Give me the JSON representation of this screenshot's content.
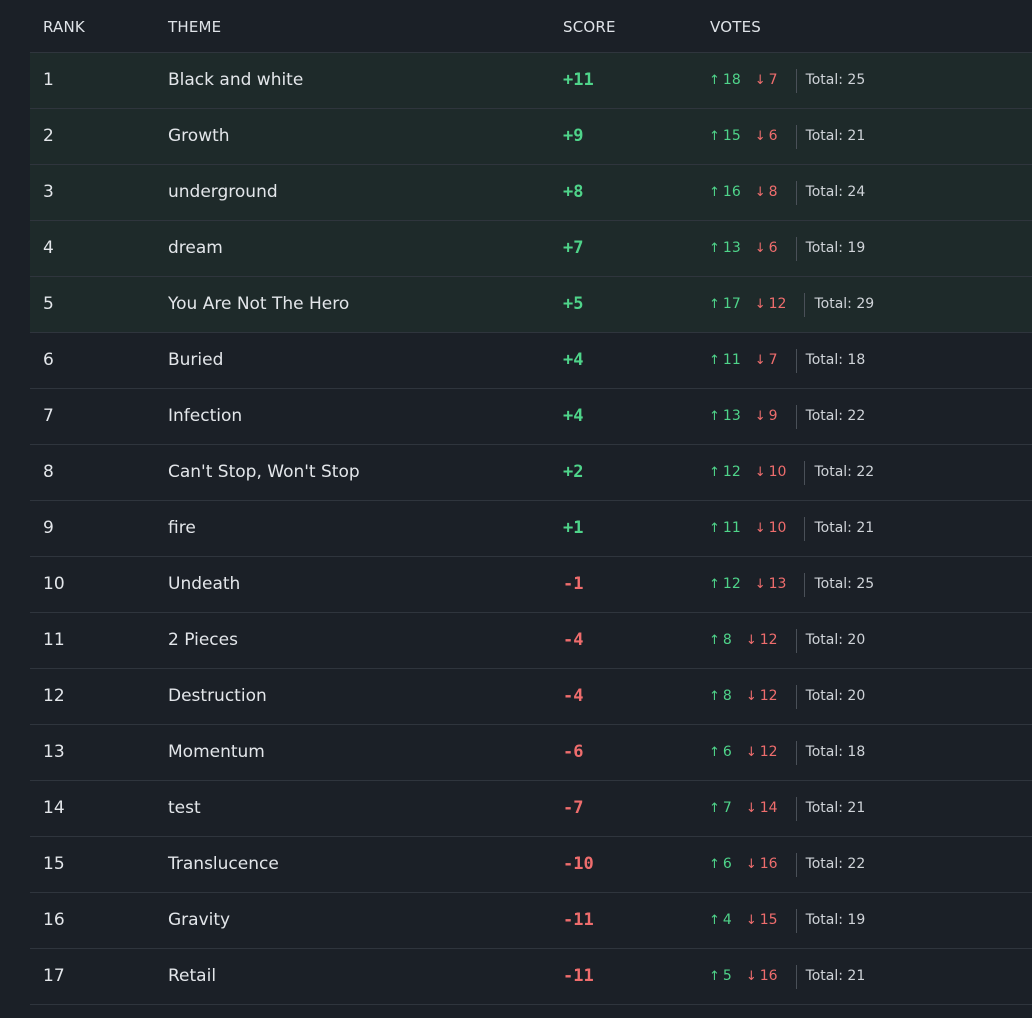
{
  "headers": {
    "rank": "RANK",
    "theme": "THEME",
    "score": "SCORE",
    "votes": "VOTES"
  },
  "arrows": {
    "up": "↑",
    "down": "↓"
  },
  "colors": {
    "positive": "#4fd48a",
    "negative": "#ef6d6d",
    "highlight_row": "#1e2a2a",
    "background": "#1b2027"
  },
  "highlighted_ranks": 5,
  "rows": [
    {
      "rank": "1",
      "theme": "Black and white",
      "score": "+11",
      "up": "18",
      "down": "7",
      "total": "Total: 25"
    },
    {
      "rank": "2",
      "theme": "Growth",
      "score": "+9",
      "up": "15",
      "down": "6",
      "total": "Total: 21"
    },
    {
      "rank": "3",
      "theme": "underground",
      "score": "+8",
      "up": "16",
      "down": "8",
      "total": "Total: 24"
    },
    {
      "rank": "4",
      "theme": "dream",
      "score": "+7",
      "up": "13",
      "down": "6",
      "total": "Total: 19"
    },
    {
      "rank": "5",
      "theme": "You Are Not The Hero",
      "score": "+5",
      "up": "17",
      "down": "12",
      "total": "Total: 29"
    },
    {
      "rank": "6",
      "theme": "Buried",
      "score": "+4",
      "up": "11",
      "down": "7",
      "total": "Total: 18"
    },
    {
      "rank": "7",
      "theme": "Infection",
      "score": "+4",
      "up": "13",
      "down": "9",
      "total": "Total: 22"
    },
    {
      "rank": "8",
      "theme": "Can't Stop, Won't Stop",
      "score": "+2",
      "up": "12",
      "down": "10",
      "total": "Total: 22"
    },
    {
      "rank": "9",
      "theme": "fire",
      "score": "+1",
      "up": "11",
      "down": "10",
      "total": "Total: 21"
    },
    {
      "rank": "10",
      "theme": "Undeath",
      "score": "-1",
      "up": "12",
      "down": "13",
      "total": "Total: 25"
    },
    {
      "rank": "11",
      "theme": "2 Pieces",
      "score": "-4",
      "up": "8",
      "down": "12",
      "total": "Total: 20"
    },
    {
      "rank": "12",
      "theme": "Destruction",
      "score": "-4",
      "up": "8",
      "down": "12",
      "total": "Total: 20"
    },
    {
      "rank": "13",
      "theme": "Momentum",
      "score": "-6",
      "up": "6",
      "down": "12",
      "total": "Total: 18"
    },
    {
      "rank": "14",
      "theme": "test",
      "score": "-7",
      "up": "7",
      "down": "14",
      "total": "Total: 21"
    },
    {
      "rank": "15",
      "theme": "Translucence",
      "score": "-10",
      "up": "6",
      "down": "16",
      "total": "Total: 22"
    },
    {
      "rank": "16",
      "theme": "Gravity",
      "score": "-11",
      "up": "4",
      "down": "15",
      "total": "Total: 19"
    },
    {
      "rank": "17",
      "theme": "Retail",
      "score": "-11",
      "up": "5",
      "down": "16",
      "total": "Total: 21"
    }
  ]
}
